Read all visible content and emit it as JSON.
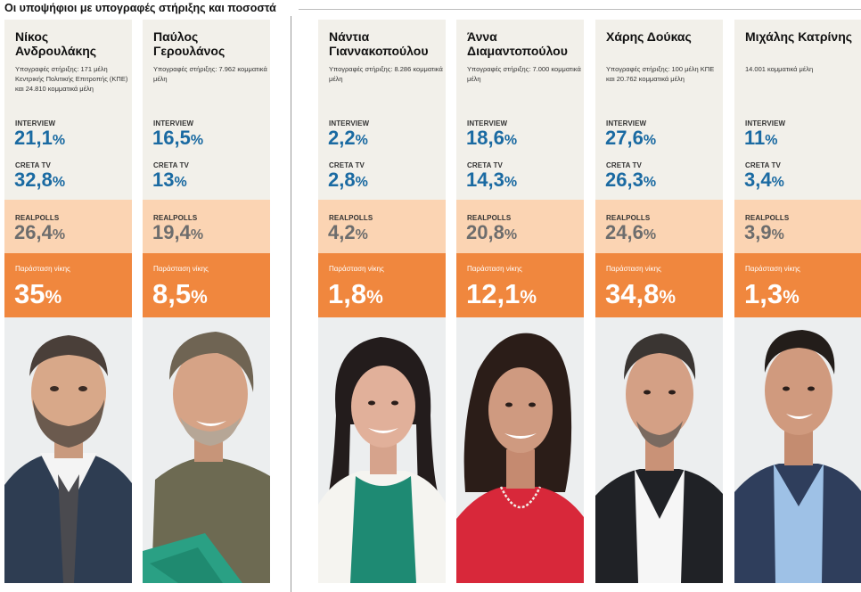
{
  "header": {
    "title": "Οι υποψήφιοι με υπογραφές στήριξης και ποσοστά"
  },
  "labels": {
    "interview": "INTERVIEW",
    "creta_tv": "CRETA TV",
    "realpolls": "REALPOLLS",
    "win": "Παράσταση νίκης",
    "percent": "%"
  },
  "candidates": [
    {
      "name": "Νίκος Ανδρουλάκης",
      "support": "Υπογραφές στήριξης: 171 μέλη Κεντρικής Πολιτικής Επιτροπής (ΚΠΕ) και 24.810 κομματικά μέλη",
      "interview": "21,1",
      "creta_tv": "32,8",
      "realpolls": "26,4",
      "win": "35",
      "photo": "portrait-androulakis"
    },
    {
      "name": "Παύλος Γερουλάνος",
      "support": "Υπογραφές στήριξης: 7.962 κομματικά μέλη",
      "interview": "16,5",
      "creta_tv": "13",
      "realpolls": "19,4",
      "win": "8,5",
      "photo": "portrait-geroulanos"
    },
    {
      "name": "Νάντια Γιαννακοπούλου",
      "support": "Υπογραφές στήριξης: 8.286 κομματικά μέλη",
      "interview": "2,2",
      "creta_tv": "2,8",
      "realpolls": "4,2",
      "win": "1,8",
      "photo": "portrait-giannakopoulou"
    },
    {
      "name": "Άννα Διαμαντοπούλου",
      "support": "Υπογραφές στήριξης: 7.000 κομματικά μέλη",
      "interview": "18,6",
      "creta_tv": "14,3",
      "realpolls": "20,8",
      "win": "12,1",
      "photo": "portrait-diamantopoulou"
    },
    {
      "name": "Χάρης Δούκας",
      "support": "Υπογραφές στήριξης: 100 μέλη ΚΠΕ και 20.762 κομματικά μέλη",
      "interview": "27,6",
      "creta_tv": "26,3",
      "realpolls": "24,6",
      "win": "34,8",
      "photo": "portrait-doukas"
    },
    {
      "name": "Μιχάλης Κατρίνης",
      "support": "14.001 κομματικά μέλη",
      "interview": "11",
      "creta_tv": "3,4",
      "realpolls": "3,9",
      "win": "1,3",
      "photo": "portrait-katrinis"
    }
  ],
  "colors": {
    "panel": "#f2f0ea",
    "interview_value": "#1a6aa2",
    "realpolls_band": "#fbd4b3",
    "realpolls_value": "#6d6d6d",
    "win_band": "#f0873e",
    "win_text": "#ffffff"
  }
}
